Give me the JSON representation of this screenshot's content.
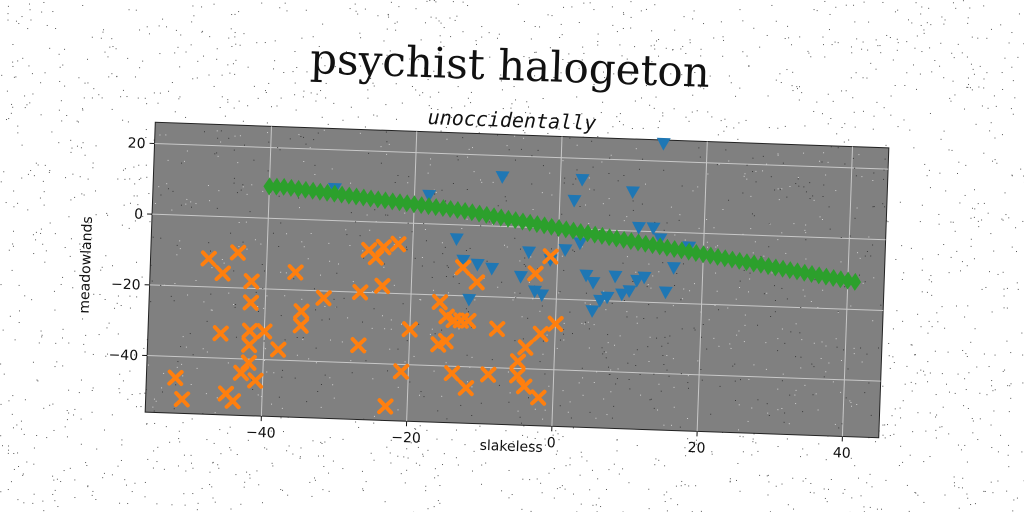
{
  "chart_data": {
    "type": "scatter",
    "title": "psychist halogeton",
    "subtitle": "unoccidentally",
    "xlabel": "slakeless",
    "ylabel": "meadowlands",
    "xlim": [
      -56,
      45
    ],
    "ylim": [
      -56,
      26
    ],
    "xticks": [
      -40,
      -20,
      0,
      20,
      40
    ],
    "yticks": [
      20,
      0,
      -20,
      -40
    ],
    "xtick_labels": [
      "−40",
      "−20",
      "0",
      "20",
      "40"
    ],
    "ytick_labels": [
      "20",
      "0",
      "−20",
      "−40"
    ],
    "grid": true,
    "background": "#808080",
    "series": [
      {
        "marker": "triangle-down",
        "color": "#1f77b4",
        "points": [
          [
            -31,
            9
          ],
          [
            -18,
            8
          ],
          [
            -14,
            -4
          ],
          [
            -13,
            -10
          ],
          [
            -12,
            -21
          ],
          [
            -11,
            -11
          ],
          [
            -5,
            -14
          ],
          [
            -4,
            -7
          ],
          [
            -3,
            -18
          ],
          [
            -2,
            -19
          ],
          [
            -1,
            -9
          ],
          [
            1,
            -6
          ],
          [
            2,
            8
          ],
          [
            3,
            -4
          ],
          [
            4,
            -13
          ],
          [
            5,
            -23
          ],
          [
            5,
            -15
          ],
          [
            6,
            -20
          ],
          [
            7,
            -19
          ],
          [
            8,
            -13
          ],
          [
            9,
            -18
          ],
          [
            10,
            -17
          ],
          [
            11,
            -14
          ],
          [
            12,
            -13
          ],
          [
            11,
            1
          ],
          [
            13,
            1
          ],
          [
            14,
            -2
          ],
          [
            15,
            -17
          ],
          [
            16,
            -10
          ],
          [
            3,
            14
          ],
          [
            10,
            11
          ],
          [
            14,
            25
          ],
          [
            18,
            -4
          ],
          [
            -8,
            14
          ],
          [
            -9,
            -12
          ]
        ]
      },
      {
        "marker": "x",
        "color": "#ff7f0e",
        "points": [
          [
            -52,
            -46
          ],
          [
            -51,
            -52
          ],
          [
            -48,
            -12
          ],
          [
            -46,
            -16
          ],
          [
            -45,
            -50
          ],
          [
            -44,
            -10
          ],
          [
            -44,
            -52
          ],
          [
            -43,
            -44
          ],
          [
            -42,
            -18
          ],
          [
            -42,
            -24
          ],
          [
            -42,
            -32
          ],
          [
            -42,
            -36
          ],
          [
            -42,
            -41
          ],
          [
            -41,
            -46
          ],
          [
            -40,
            -32
          ],
          [
            -46,
            -33
          ],
          [
            -38,
            -37
          ],
          [
            -36,
            -15
          ],
          [
            -35,
            -26
          ],
          [
            -35,
            -30
          ],
          [
            -32,
            -22
          ],
          [
            -27,
            -35
          ],
          [
            -27,
            -20
          ],
          [
            -26,
            -8
          ],
          [
            -25,
            -10
          ],
          [
            -24,
            -7
          ],
          [
            -24,
            -18
          ],
          [
            -23,
            -52
          ],
          [
            -22,
            -6
          ],
          [
            -21,
            -42
          ],
          [
            -20,
            -30
          ],
          [
            -16,
            -34
          ],
          [
            -16,
            -22
          ],
          [
            -15,
            -26
          ],
          [
            -15,
            -33
          ],
          [
            -14,
            -27
          ],
          [
            -14,
            -42
          ],
          [
            -13,
            -12
          ],
          [
            -12,
            -46
          ],
          [
            -12,
            -27
          ],
          [
            -11,
            -16
          ],
          [
            -9,
            -42
          ],
          [
            -8,
            -29
          ],
          [
            -5,
            -38
          ],
          [
            -5,
            -42
          ],
          [
            -4,
            -45
          ],
          [
            -4,
            -34
          ],
          [
            -3,
            -13
          ],
          [
            -2,
            -48
          ],
          [
            -2,
            -30
          ],
          [
            -1,
            -8
          ],
          [
            0,
            -27
          ],
          [
            -13,
            -27
          ]
        ]
      },
      {
        "marker": "diamond",
        "color": "#2ca02c",
        "points": [
          [
            -40,
            9
          ],
          [
            -39,
            9
          ],
          [
            -38,
            9
          ],
          [
            -37,
            8.8
          ],
          [
            -36,
            8.6
          ],
          [
            -35,
            8.4
          ],
          [
            -34,
            8.2
          ],
          [
            -33,
            8
          ],
          [
            -32,
            7.8
          ],
          [
            -31,
            7.6
          ],
          [
            -30,
            7.4
          ],
          [
            -29,
            7.2
          ],
          [
            -28,
            7
          ],
          [
            -27,
            6.8
          ],
          [
            -26,
            6.6
          ],
          [
            -25,
            6.4
          ],
          [
            -24,
            6.2
          ],
          [
            -23,
            6
          ],
          [
            -22,
            5.8
          ],
          [
            -21,
            5.6
          ],
          [
            -20,
            5.4
          ],
          [
            -19,
            5.2
          ],
          [
            -18,
            5
          ],
          [
            -17,
            4.8
          ],
          [
            -16,
            4.6
          ],
          [
            -15,
            4.4
          ],
          [
            -14,
            4.2
          ],
          [
            -13,
            4
          ],
          [
            -12,
            3.7
          ],
          [
            -11,
            3.4
          ],
          [
            -10,
            3.1
          ],
          [
            -9,
            2.8
          ],
          [
            -8,
            2.5
          ],
          [
            -7,
            2.2
          ],
          [
            -6,
            1.9
          ],
          [
            -5,
            1.6
          ],
          [
            -4,
            1.3
          ],
          [
            -3,
            1
          ],
          [
            -2,
            0.7
          ],
          [
            -1,
            0.4
          ],
          [
            0,
            0.1
          ],
          [
            1,
            -0.2
          ],
          [
            2,
            -0.5
          ],
          [
            3,
            -0.8
          ],
          [
            4,
            -1.1
          ],
          [
            5,
            -1.4
          ],
          [
            6,
            -1.7
          ],
          [
            7,
            -2
          ],
          [
            8,
            -2.3
          ],
          [
            9,
            -2.6
          ],
          [
            10,
            -2.9
          ],
          [
            11,
            -3.2
          ],
          [
            12,
            -3.5
          ],
          [
            13,
            -3.8
          ],
          [
            14,
            -4.1
          ],
          [
            15,
            -4.4
          ],
          [
            16,
            -4.7
          ],
          [
            17,
            -5
          ],
          [
            18,
            -5.3
          ],
          [
            19,
            -5.6
          ],
          [
            20,
            -5.9
          ],
          [
            21,
            -6.2
          ],
          [
            22,
            -6.5
          ],
          [
            23,
            -6.8
          ],
          [
            24,
            -7.1
          ],
          [
            25,
            -7.4
          ],
          [
            26,
            -7.7
          ],
          [
            27,
            -8
          ],
          [
            28,
            -8.3
          ],
          [
            29,
            -8.6
          ],
          [
            30,
            -8.9
          ],
          [
            31,
            -9.2
          ],
          [
            32,
            -9.5
          ],
          [
            33,
            -9.8
          ],
          [
            34,
            -10.1
          ],
          [
            35,
            -10.4
          ],
          [
            36,
            -10.7
          ],
          [
            37,
            -11
          ],
          [
            38,
            -11.3
          ],
          [
            39,
            -11.6
          ],
          [
            40,
            -11.9
          ],
          [
            41,
            -12.2
          ]
        ]
      }
    ]
  }
}
